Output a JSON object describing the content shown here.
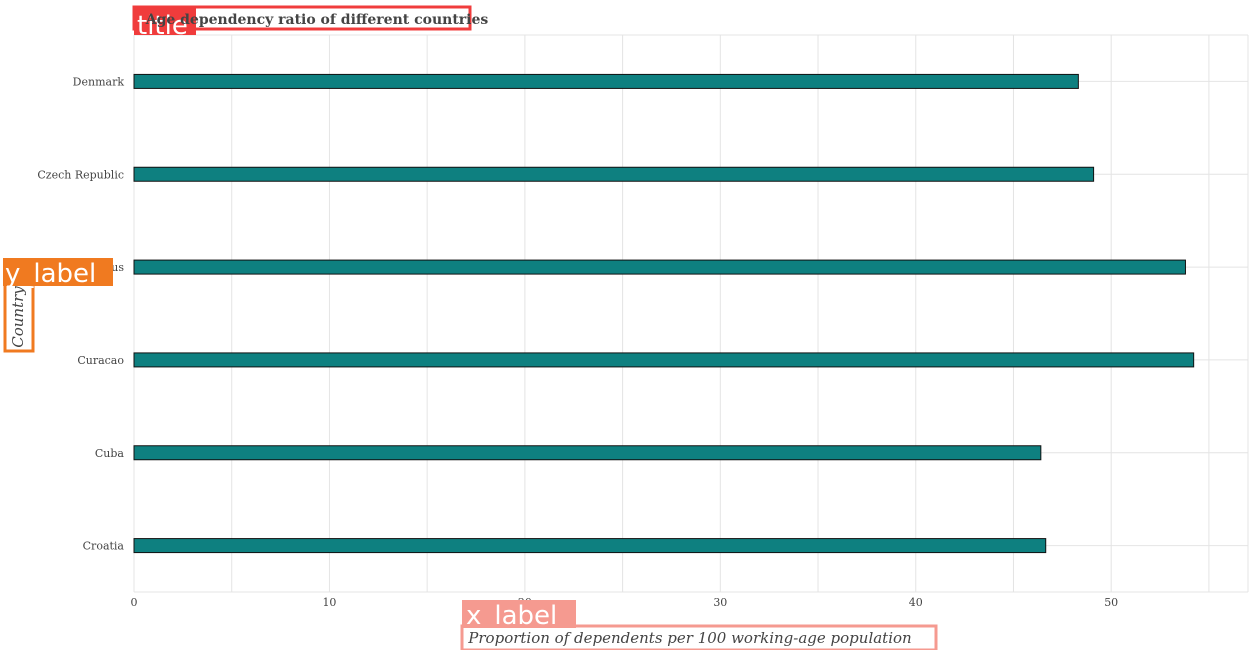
{
  "chart_data": {
    "type": "bar",
    "orientation": "horizontal",
    "title": "Age dependency ratio of different countries",
    "xlabel": "Proportion of dependents per 100 working-age population",
    "ylabel": "Country",
    "categories": [
      "Croatia",
      "Cuba",
      "Curacao",
      "Cyprus",
      "Czech Republic",
      "Denmark"
    ],
    "values": [
      46.65,
      46.4,
      54.22,
      53.8,
      49.1,
      48.32
    ],
    "xlim": [
      0,
      57
    ],
    "xticks": [
      0,
      10,
      20,
      30,
      40,
      50
    ],
    "grid": true,
    "bar_color": "#0e8080",
    "bar_edge_color": "#111111"
  },
  "annotations": {
    "title_tag": "title",
    "xlabel_tag": "x_label",
    "ylabel_tag": "y_label",
    "title_color": "#f03c3c",
    "xlabel_color": "#f59a90",
    "ylabel_color": "#f07a20"
  }
}
